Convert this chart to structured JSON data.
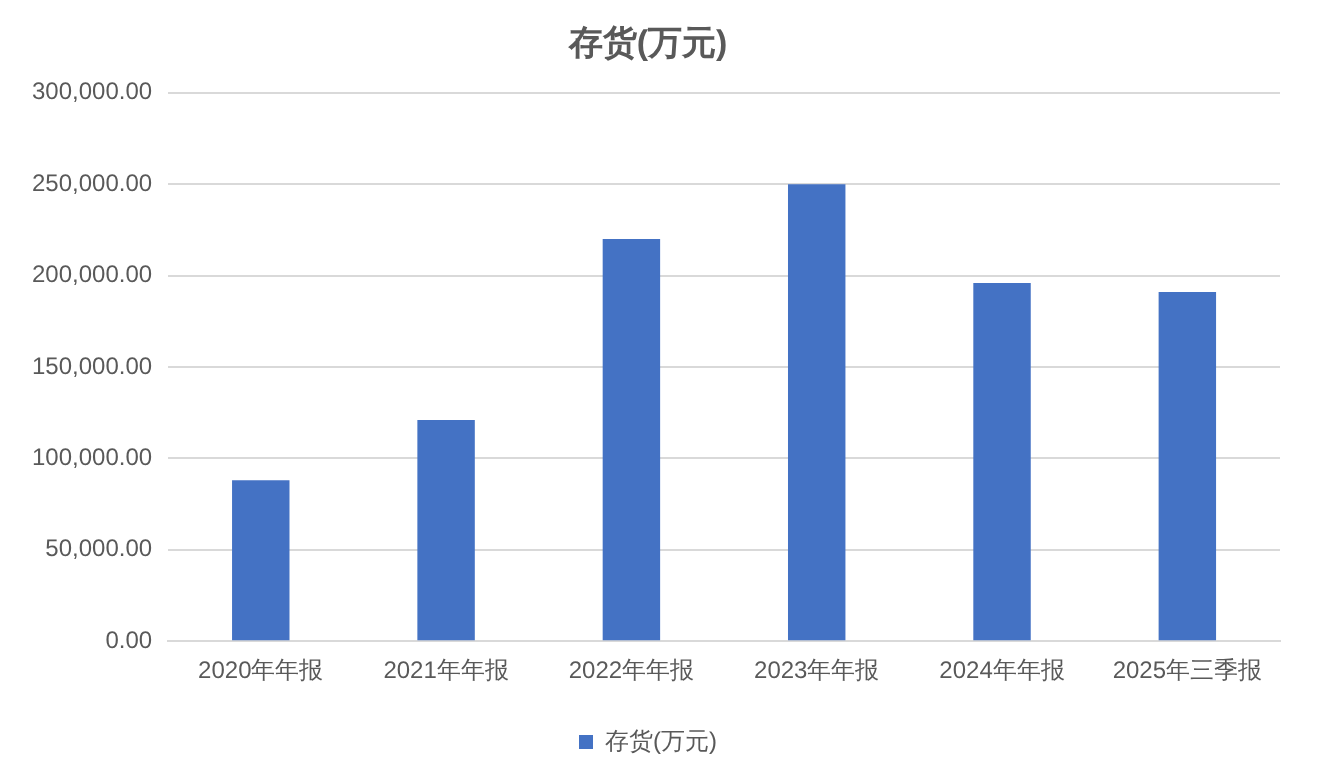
{
  "chart_data": {
    "type": "bar",
    "title": "存货(万元)",
    "categories": [
      "2020年年报",
      "2021年年报",
      "2022年年报",
      "2023年年报",
      "2024年年报",
      "2025年三季报"
    ],
    "series": [
      {
        "name": "存货(万元)",
        "color": "#4472c4",
        "values": [
          88000,
          121000,
          220000,
          250000,
          196000,
          191000
        ]
      }
    ],
    "ylim": [
      0,
      300000
    ],
    "yticks": [
      {
        "value": 0,
        "label": "0.00"
      },
      {
        "value": 50000,
        "label": "50,000.00"
      },
      {
        "value": 100000,
        "label": "100,000.00"
      },
      {
        "value": 150000,
        "label": "150,000.00"
      },
      {
        "value": 200000,
        "label": "200,000.00"
      },
      {
        "value": 250000,
        "label": "250,000.00"
      },
      {
        "value": 300000,
        "label": "300,000.00"
      }
    ],
    "grid": "y",
    "legend": "bottom"
  }
}
